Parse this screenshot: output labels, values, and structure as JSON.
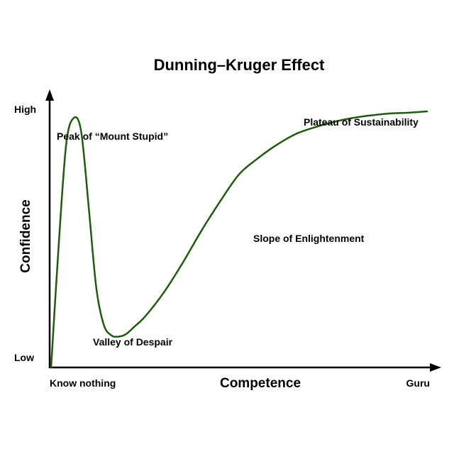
{
  "chart_data": {
    "type": "line",
    "title": "Dunning–Kruger Effect",
    "xlabel": "Competence",
    "ylabel": "Confidence",
    "x_ticks": [
      "Know nothing",
      "Guru"
    ],
    "y_ticks": [
      "Low",
      "High"
    ],
    "xlim": [
      0,
      100
    ],
    "ylim": [
      0,
      100
    ],
    "grid": false,
    "legend": "none",
    "colors": {
      "curve": "#1f5a0e",
      "axes": "#000000"
    },
    "series": [
      {
        "x": [
          0,
          2,
          4,
          6,
          8,
          10,
          12,
          14,
          16,
          18,
          20,
          22,
          25,
          30,
          35,
          40,
          45,
          50,
          55,
          60,
          65,
          70,
          75,
          80,
          85,
          90,
          95,
          100
        ],
        "y": [
          0,
          45,
          83,
          93,
          88,
          60,
          30,
          16,
          12,
          11.5,
          12.5,
          15,
          19,
          28,
          39,
          51,
          62,
          72,
          78,
          83,
          87,
          89.5,
          91.5,
          93,
          94,
          94.7,
          95,
          95.5
        ]
      }
    ],
    "annotations": [
      {
        "label": "Peak of “Mount Stupid”",
        "x": 6,
        "y": 93
      },
      {
        "label": "Valley of Despair",
        "x": 18,
        "y": 11.5
      },
      {
        "label": "Slope of Enlightenment",
        "x": 50,
        "y": 72
      },
      {
        "label": "Plateau of Sustainability",
        "x": 100,
        "y": 95.5
      }
    ]
  }
}
